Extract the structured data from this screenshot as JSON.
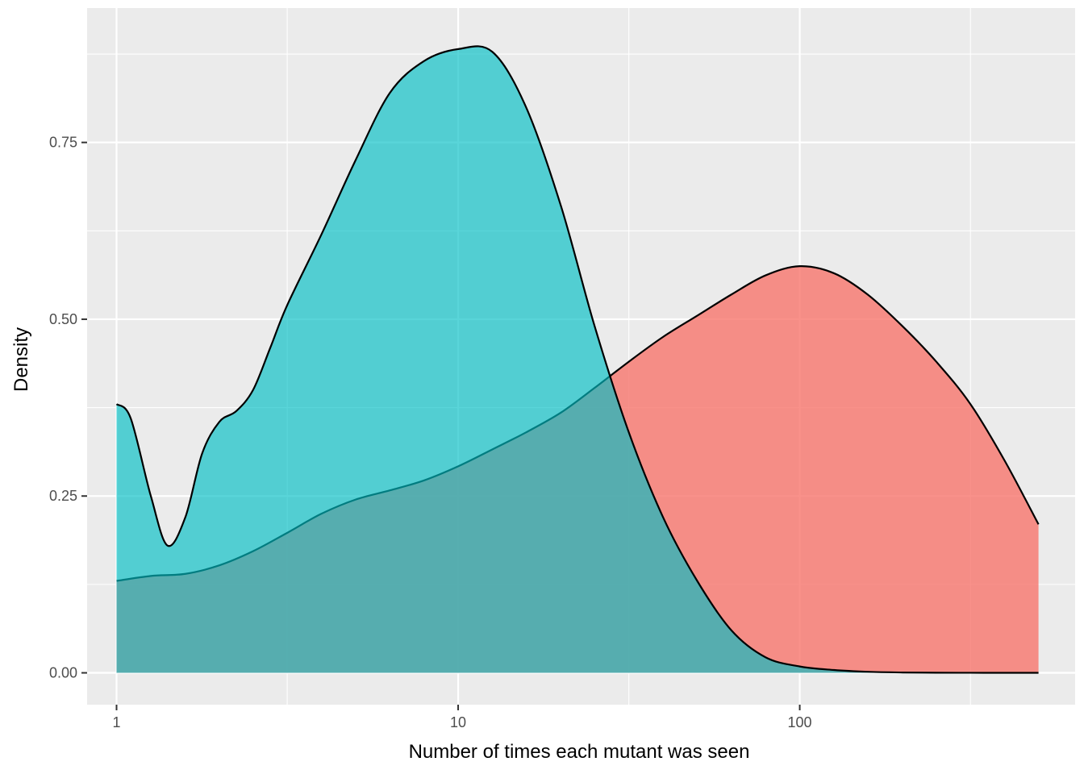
{
  "chart_data": {
    "type": "area",
    "title": "",
    "xlabel": "Number of times each mutant was seen",
    "ylabel": "Density",
    "x_scale": "log10",
    "xlim": [
      0.82,
      640
    ],
    "ylim": [
      -0.045,
      0.94
    ],
    "x_ticks": [
      {
        "value": 1,
        "label": "1"
      },
      {
        "value": 10,
        "label": "10"
      },
      {
        "value": 100,
        "label": "100"
      }
    ],
    "x_minor_ticks": [
      3.16,
      31.6,
      316
    ],
    "y_ticks": [
      {
        "value": 0,
        "label": "0.00"
      },
      {
        "value": 0.25,
        "label": "0.25"
      },
      {
        "value": 0.5,
        "label": "0.50"
      },
      {
        "value": 0.75,
        "label": "0.75"
      }
    ],
    "y_minor_ticks": [
      0.125,
      0.375,
      0.625,
      0.875
    ],
    "grid": true,
    "legend": "none",
    "series": [
      {
        "color": "#F8766D",
        "opacity": 0.8,
        "x": [
          1,
          1.26,
          1.59,
          2,
          2.51,
          3.16,
          3.98,
          5.01,
          6.31,
          7.94,
          10,
          12.6,
          15.8,
          20,
          25.1,
          31.6,
          39.8,
          50.1,
          63.1,
          79.4,
          100,
          126,
          158,
          200,
          251,
          316,
          398,
          500
        ],
        "y": [
          0.13,
          0.137,
          0.14,
          0.152,
          0.172,
          0.198,
          0.225,
          0.245,
          0.258,
          0.272,
          0.292,
          0.316,
          0.34,
          0.368,
          0.403,
          0.44,
          0.475,
          0.505,
          0.535,
          0.562,
          0.575,
          0.565,
          0.535,
          0.49,
          0.44,
          0.38,
          0.3,
          0.21
        ]
      },
      {
        "color": "#00BFC4",
        "opacity": 0.65,
        "x": [
          1,
          1.1,
          1.26,
          1.41,
          1.59,
          1.78,
          2,
          2.24,
          2.51,
          2.82,
          3.16,
          3.98,
          5.01,
          6.31,
          7.94,
          10,
          12.6,
          15.8,
          20,
          25.1,
          31.6,
          39.8,
          50.1,
          63.1,
          79.4,
          100,
          126,
          158,
          200,
          251,
          316,
          398,
          500
        ],
        "y": [
          0.38,
          0.36,
          0.25,
          0.18,
          0.22,
          0.31,
          0.355,
          0.37,
          0.4,
          0.46,
          0.52,
          0.62,
          0.725,
          0.82,
          0.865,
          0.882,
          0.878,
          0.8,
          0.66,
          0.49,
          0.34,
          0.22,
          0.13,
          0.06,
          0.022,
          0.009,
          0.004,
          0.0015,
          0.0005,
          0.0002,
          0.0001,
          0,
          0
        ]
      }
    ]
  }
}
